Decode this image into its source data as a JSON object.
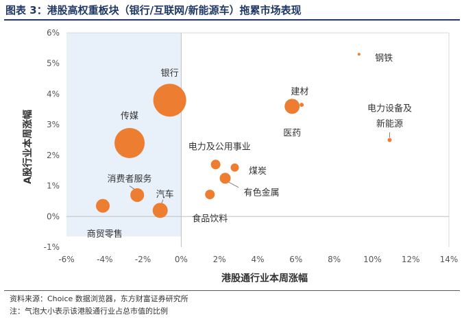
{
  "figure": {
    "title": "图表 3：港股高权重板块（银行/互联网/新能源车）拖累市场表现",
    "source": "资料来源：Choice 数据浏览器，东方财富证券研究所",
    "note": "注：气泡大小表示该港股通行业占总市值的比例"
  },
  "colors": {
    "bubble": "#ed7d31",
    "highlight_region": "#e8f0fa",
    "title": "#1f3864"
  },
  "chart_data": {
    "type": "bubble",
    "xlabel": "港股通行业本周涨幅",
    "ylabel": "A股行业本周涨幅",
    "xlim": [
      -6,
      14
    ],
    "ylim": [
      -1,
      6
    ],
    "x_ticks": [
      -6,
      -4,
      -2,
      0,
      2,
      4,
      6,
      8,
      10,
      12,
      14
    ],
    "y_ticks": [
      -1,
      0,
      1,
      2,
      3,
      4,
      5,
      6
    ],
    "x_tick_labels": [
      "-6%",
      "-4%",
      "-2%",
      "0%",
      "2%",
      "4%",
      "6%",
      "8%",
      "10%",
      "12%",
      "14%"
    ],
    "y_tick_labels": [
      "-1%",
      "0%",
      "1%",
      "2%",
      "3%",
      "4%",
      "5%",
      "6%"
    ],
    "highlight_region": {
      "x": [
        -6,
        0
      ],
      "y": [
        -0.65,
        6
      ]
    },
    "points": [
      {
        "label": "银行",
        "x": -0.6,
        "y": 3.8,
        "size": 24
      },
      {
        "label": "传媒",
        "x": -2.7,
        "y": 2.4,
        "size": 22
      },
      {
        "label": "消费者服务",
        "x": -2.3,
        "y": 0.7,
        "size": 10
      },
      {
        "label": "汽车",
        "x": -1.1,
        "y": 0.2,
        "size": 11
      },
      {
        "label": "商贸零售",
        "x": -4.1,
        "y": 0.35,
        "size": 10
      },
      {
        "label": "电力及公用事业",
        "x": 1.8,
        "y": 1.7,
        "size": 7
      },
      {
        "label": "煤炭",
        "x": 2.8,
        "y": 1.6,
        "size": 6
      },
      {
        "label": "有色金属",
        "x": 2.3,
        "y": 1.25,
        "size": 8
      },
      {
        "label": "食品饮料",
        "x": 1.5,
        "y": 0.72,
        "size": 7
      },
      {
        "label": "医药",
        "x": 5.8,
        "y": 3.6,
        "size": 11
      },
      {
        "label": "建材",
        "x": 6.3,
        "y": 3.65,
        "size": 3
      },
      {
        "label": "钢铁",
        "x": 9.3,
        "y": 5.3,
        "size": 2
      },
      {
        "label": "电力设备及新能源",
        "x": 10.9,
        "y": 2.5,
        "size": 3
      }
    ],
    "annotations": [
      {
        "text": "银行",
        "x": -0.6,
        "y": 4.7
      },
      {
        "text": "传媒",
        "x": -2.7,
        "y": 3.3
      },
      {
        "text": "消费者服务",
        "x": -2.7,
        "y": 1.25
      },
      {
        "text": "汽车",
        "x": -0.85,
        "y": 0.75
      },
      {
        "text": "商贸零售",
        "x": -4.0,
        "y": -0.55
      },
      {
        "text": "电力及公用事业",
        "x": 2.0,
        "y": 2.3
      },
      {
        "text": "煤炭",
        "x": 4.0,
        "y": 1.5
      },
      {
        "text": "有色金属",
        "x": 4.2,
        "y": 0.8
      },
      {
        "text": "食品饮料",
        "x": 1.5,
        "y": -0.05
      },
      {
        "text": "医药",
        "x": 5.8,
        "y": 2.75
      },
      {
        "text": "建材",
        "x": 6.2,
        "y": 4.1
      },
      {
        "text": "钢铁",
        "x": 10.6,
        "y": 5.2
      },
      {
        "text": "电力设备及",
        "x": 10.9,
        "y": 3.55
      },
      {
        "text": "新能源",
        "x": 10.9,
        "y": 3.05
      }
    ],
    "leader_lines": [
      {
        "from": [
          -2.7,
          1.0
        ],
        "to": [
          -2.35,
          0.85
        ]
      },
      {
        "from": [
          -0.95,
          0.55
        ],
        "to": [
          -1.05,
          0.38
        ]
      },
      {
        "from": [
          3.0,
          0.95
        ],
        "to": [
          2.4,
          1.15
        ]
      },
      {
        "from": [
          10.9,
          2.75
        ],
        "to": [
          10.9,
          2.58
        ]
      }
    ],
    "grid": false
  }
}
